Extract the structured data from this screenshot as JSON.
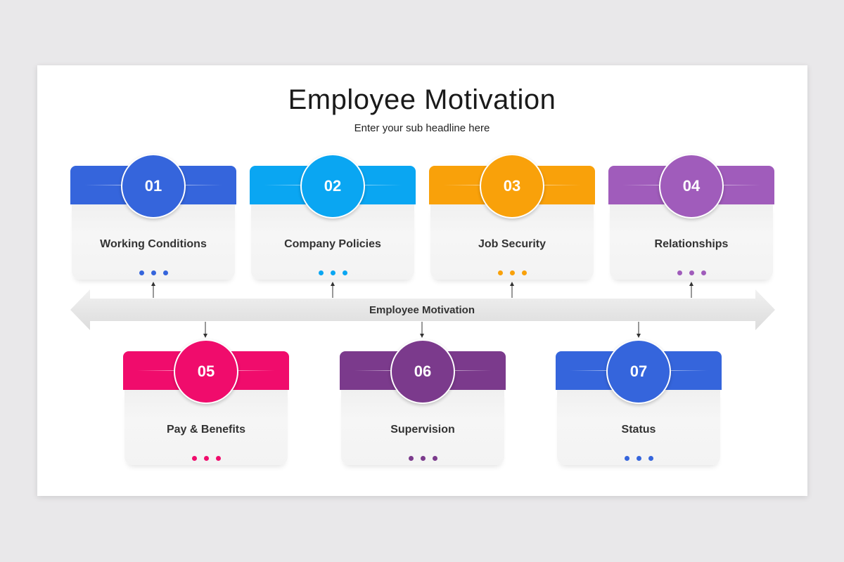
{
  "title": "Employee Motivation",
  "subtitle": "Enter your sub headline here",
  "arrow_label": "Employee Motivation",
  "cards": [
    {
      "number": "01",
      "label": "Working Conditions",
      "color": "#3565dc"
    },
    {
      "number": "02",
      "label": "Company Policies",
      "color": "#0aa6f2"
    },
    {
      "number": "03",
      "label": "Job Security",
      "color": "#f9a10a"
    },
    {
      "number": "04",
      "label": "Relationships",
      "color": "#a05cbb"
    },
    {
      "number": "05",
      "label": "Pay & Benefits",
      "color": "#f00c6c"
    },
    {
      "number": "06",
      "label": "Supervision",
      "color": "#7b3a8c"
    },
    {
      "number": "07",
      "label": "Status",
      "color": "#3565dc"
    }
  ]
}
